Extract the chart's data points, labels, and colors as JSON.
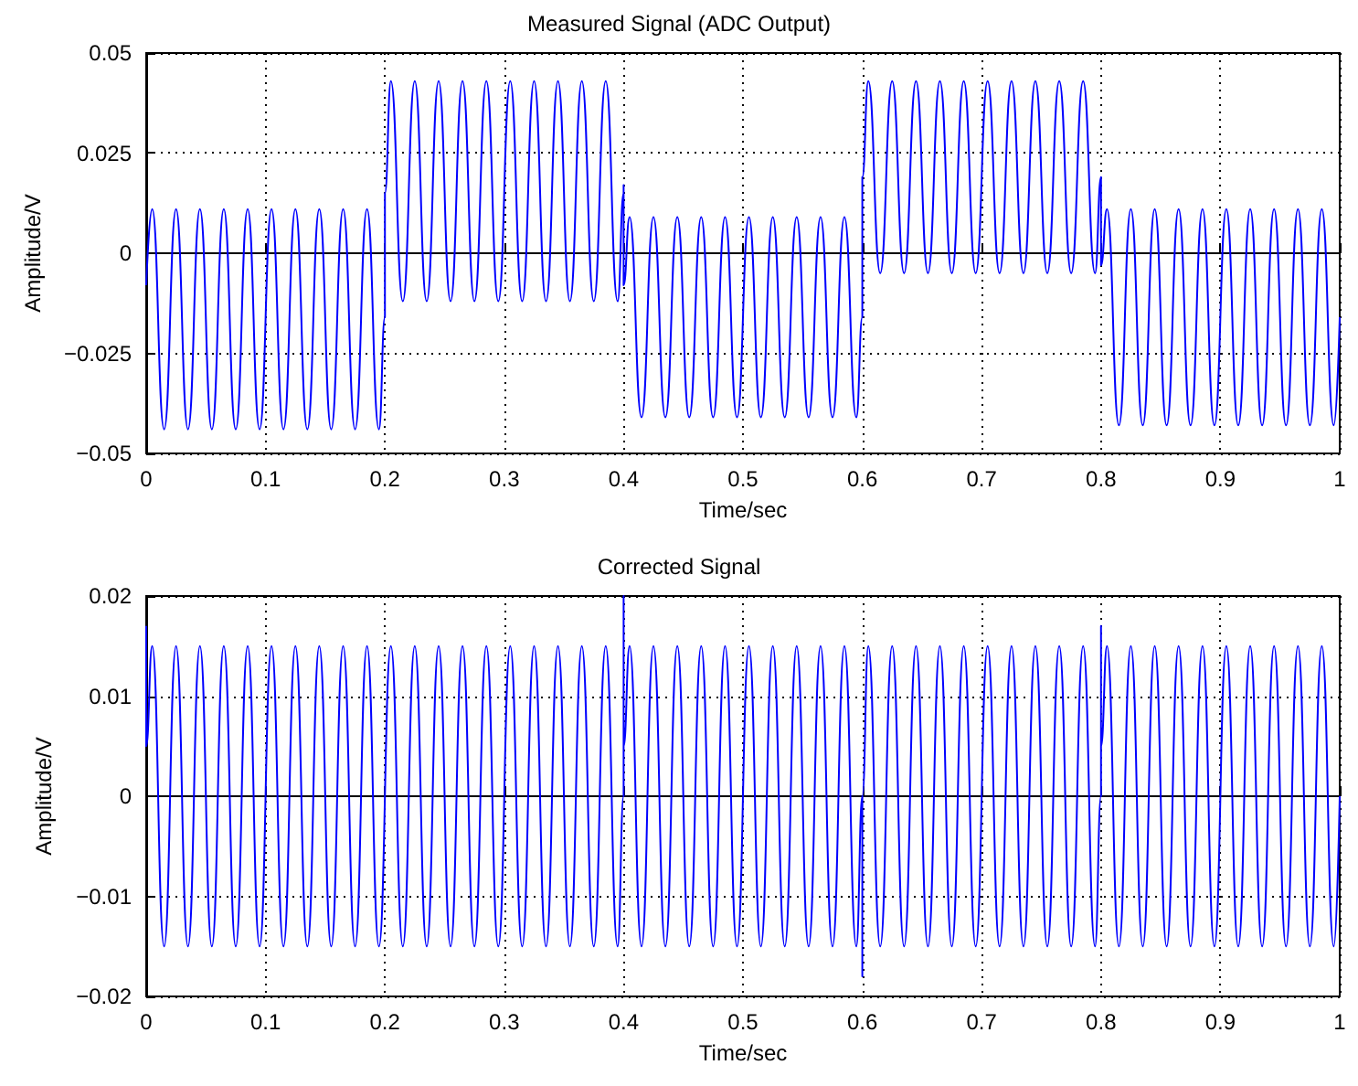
{
  "chart_data": [
    {
      "type": "line",
      "title": "Measured Signal (ADC Output)",
      "xlabel": "Time/sec",
      "ylabel": "Amplitude/V",
      "x": [
        0,
        0.005,
        0.015,
        0.025,
        0.035,
        0.045,
        0.055,
        0.065,
        0.075,
        0.085,
        0.095,
        0.105,
        0.115,
        0.125,
        0.135,
        0.145,
        0.155,
        0.165,
        0.175,
        0.185,
        0.195,
        0.2,
        0.2,
        0.205,
        0.215,
        0.225,
        0.235,
        0.245,
        0.255,
        0.265,
        0.275,
        0.285,
        0.295,
        0.305,
        0.315,
        0.325,
        0.335,
        0.345,
        0.355,
        0.365,
        0.375,
        0.385,
        0.395,
        0.4,
        0.4,
        0.4,
        0.405,
        0.415,
        0.425,
        0.435,
        0.445,
        0.455,
        0.465,
        0.475,
        0.485,
        0.495,
        0.505,
        0.515,
        0.525,
        0.535,
        0.545,
        0.555,
        0.565,
        0.575,
        0.585,
        0.595,
        0.6,
        0.6,
        0.605,
        0.615,
        0.625,
        0.635,
        0.645,
        0.655,
        0.665,
        0.675,
        0.685,
        0.695,
        0.705,
        0.715,
        0.725,
        0.735,
        0.745,
        0.755,
        0.765,
        0.775,
        0.785,
        0.795,
        0.8,
        0.8,
        0.8,
        0.805,
        0.815,
        0.825,
        0.835,
        0.845,
        0.855,
        0.865,
        0.875,
        0.885,
        0.895,
        0.905,
        0.915,
        0.925,
        0.935,
        0.945,
        0.955,
        0.965,
        0.975,
        0.985,
        0.995,
        1
      ],
      "series": [
        {
          "color": "#0000ff",
          "values": [
            -0.008,
            0.011,
            -0.044,
            0.011,
            -0.044,
            0.011,
            -0.044,
            0.011,
            -0.044,
            0.011,
            -0.044,
            0.011,
            -0.044,
            0.011,
            -0.044,
            0.011,
            -0.044,
            0.011,
            -0.044,
            0.011,
            -0.044,
            -0.016,
            0.015,
            0.043,
            -0.012,
            0.043,
            -0.012,
            0.043,
            -0.012,
            0.043,
            -0.012,
            0.043,
            -0.012,
            0.043,
            -0.012,
            0.043,
            -0.012,
            0.043,
            -0.012,
            0.043,
            -0.012,
            0.043,
            -0.012,
            0.015,
            0.017,
            -0.008,
            0.009,
            -0.041,
            0.009,
            -0.041,
            0.009,
            -0.041,
            0.009,
            -0.041,
            0.009,
            -0.041,
            0.009,
            -0.041,
            0.009,
            -0.041,
            0.009,
            -0.041,
            0.009,
            -0.041,
            0.009,
            -0.041,
            -0.016,
            0.019,
            0.043,
            -0.005,
            0.043,
            -0.005,
            0.043,
            -0.005,
            0.043,
            -0.005,
            0.043,
            -0.005,
            0.043,
            -0.005,
            0.043,
            -0.005,
            0.043,
            -0.005,
            0.043,
            -0.005,
            0.043,
            -0.005,
            0.019,
            0.018,
            -0.003,
            0.011,
            -0.043,
            0.011,
            -0.043,
            0.011,
            -0.043,
            0.011,
            -0.043,
            0.011,
            -0.043,
            0.011,
            -0.043,
            0.011,
            -0.043,
            0.011,
            -0.043,
            0.011,
            -0.043,
            0.011,
            -0.043,
            -0.016
          ]
        }
      ],
      "xlim": [
        0,
        1
      ],
      "xticks": [
        0,
        0.1,
        0.2,
        0.3,
        0.4,
        0.5,
        0.6,
        0.7,
        0.8,
        0.9,
        1
      ],
      "ylim": [
        -0.05,
        0.05
      ],
      "yticks": [
        -0.05,
        -0.025,
        0,
        0.025,
        0.05
      ],
      "grid": true
    },
    {
      "type": "line",
      "title": "Corrected Signal",
      "xlabel": "Time/sec",
      "ylabel": "Amplitude/V",
      "x": [
        0,
        0,
        0.005,
        0.015,
        0.025,
        0.035,
        0.045,
        0.055,
        0.065,
        0.075,
        0.085,
        0.095,
        0.105,
        0.115,
        0.125,
        0.135,
        0.145,
        0.155,
        0.165,
        0.175,
        0.185,
        0.195,
        0.205,
        0.215,
        0.225,
        0.235,
        0.245,
        0.255,
        0.265,
        0.275,
        0.285,
        0.295,
        0.305,
        0.315,
        0.325,
        0.335,
        0.345,
        0.355,
        0.365,
        0.375,
        0.385,
        0.395,
        0.4,
        0.4,
        0.4,
        0.405,
        0.415,
        0.425,
        0.435,
        0.445,
        0.455,
        0.465,
        0.475,
        0.485,
        0.495,
        0.505,
        0.515,
        0.525,
        0.535,
        0.545,
        0.555,
        0.565,
        0.575,
        0.585,
        0.595,
        0.6,
        0.6,
        0.6,
        0.605,
        0.615,
        0.625,
        0.635,
        0.645,
        0.655,
        0.665,
        0.675,
        0.685,
        0.695,
        0.705,
        0.715,
        0.725,
        0.735,
        0.745,
        0.755,
        0.765,
        0.775,
        0.785,
        0.795,
        0.8,
        0.8,
        0.8,
        0.805,
        0.815,
        0.825,
        0.835,
        0.845,
        0.855,
        0.865,
        0.875,
        0.885,
        0.895,
        0.905,
        0.915,
        0.925,
        0.935,
        0.945,
        0.955,
        0.965,
        0.975,
        0.985,
        0.995,
        1
      ],
      "series": [
        {
          "color": "#0000ff",
          "values": [
            0.017,
            0.005,
            0.015,
            -0.015,
            0.015,
            -0.015,
            0.015,
            -0.015,
            0.015,
            -0.015,
            0.015,
            -0.015,
            0.015,
            -0.015,
            0.015,
            -0.015,
            0.015,
            -0.015,
            0.015,
            -0.015,
            0.015,
            -0.015,
            0.015,
            -0.015,
            0.015,
            -0.015,
            0.015,
            -0.015,
            0.015,
            -0.015,
            0.015,
            -0.015,
            0.015,
            -0.015,
            0.015,
            -0.015,
            0.015,
            -0.015,
            0.015,
            -0.015,
            0.015,
            -0.015,
            0,
            0.02,
            0.005,
            0.015,
            -0.015,
            0.015,
            -0.015,
            0.015,
            -0.015,
            0.015,
            -0.015,
            0.015,
            -0.015,
            0.015,
            -0.015,
            0.015,
            -0.015,
            0.015,
            -0.015,
            0.015,
            -0.015,
            0.015,
            -0.015,
            0,
            -0.018,
            0,
            0.015,
            -0.015,
            0.015,
            -0.015,
            0.015,
            -0.015,
            0.015,
            -0.015,
            0.015,
            -0.015,
            0.015,
            -0.015,
            0.015,
            -0.015,
            0.015,
            -0.015,
            0.015,
            -0.015,
            0.015,
            -0.015,
            0,
            0.017,
            0.005,
            0.015,
            -0.015,
            0.015,
            -0.015,
            0.015,
            -0.015,
            0.015,
            -0.015,
            0.015,
            -0.015,
            0.015,
            -0.015,
            0.015,
            -0.015,
            0.015,
            -0.015,
            0.015,
            -0.015,
            0.015,
            -0.015,
            0
          ]
        }
      ],
      "xlim": [
        0,
        1
      ],
      "xticks": [
        0,
        0.1,
        0.2,
        0.3,
        0.4,
        0.5,
        0.6,
        0.7,
        0.8,
        0.9,
        1
      ],
      "ylim": [
        -0.02,
        0.02
      ],
      "yticks": [
        -0.02,
        -0.01,
        0,
        0.01,
        0.02
      ],
      "grid": true
    }
  ]
}
